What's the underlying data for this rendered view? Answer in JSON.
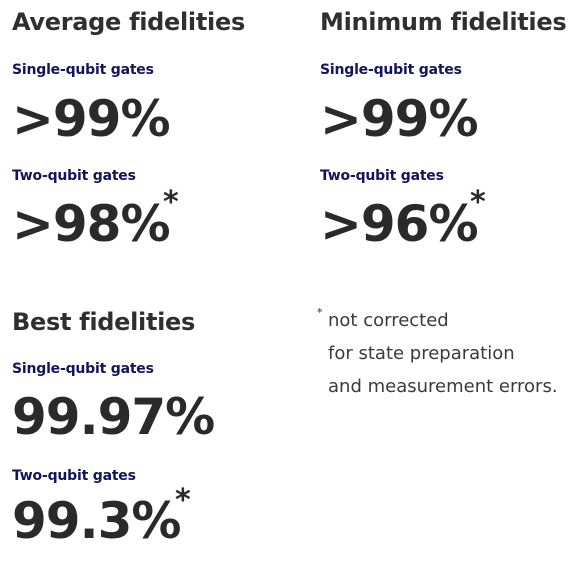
{
  "average": {
    "heading": "Average fidelities",
    "single_label": "Single-qubit gates",
    "single_value": ">99%",
    "two_label": "Two-qubit gates",
    "two_value": ">98%",
    "two_marker": "*"
  },
  "minimum": {
    "heading": "Minimum fidelities",
    "single_label": "Single-qubit gates",
    "single_value": ">99%",
    "two_label": "Two-qubit gates",
    "two_value": ">96%",
    "two_marker": "*"
  },
  "best": {
    "heading": "Best fidelities",
    "single_label": "Single-qubit gates",
    "single_value": "99.97%",
    "two_label": "Two-qubit gates",
    "two_value": "99.3%",
    "two_marker": "*"
  },
  "footnote": {
    "marker": "*",
    "lines": [
      "not corrected",
      "for state preparation",
      "and measurement errors."
    ]
  },
  "colors": {
    "heading": "#2f2f2f",
    "sublabel": "#13135e",
    "value": "#2a2a2a"
  }
}
